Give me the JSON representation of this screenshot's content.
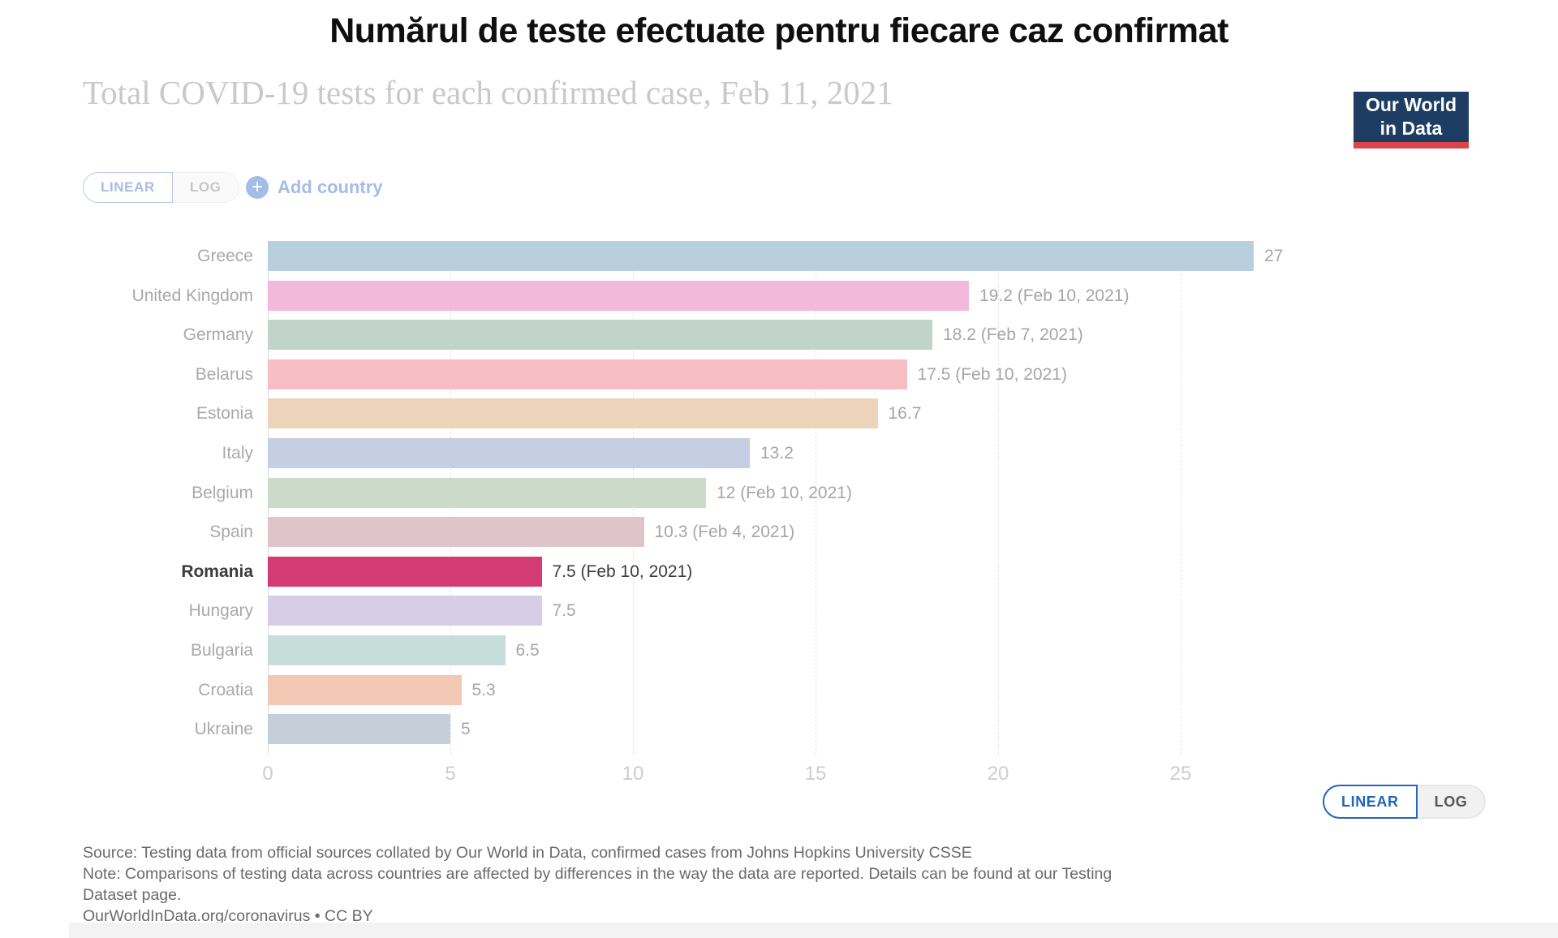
{
  "title": "Numărul de teste efectuate pentru fiecare caz confirmat",
  "subtitle": "Total COVID-19 tests for each confirmed case, Feb 11, 2021",
  "logo": {
    "line1": "Our World",
    "line2": "in Data",
    "bg_color": "#1d3d63",
    "accent_color": "#dc4449"
  },
  "controls": {
    "linear_label": "LINEAR",
    "log_label": "LOG",
    "add_country_label": "Add country",
    "plus_icon": "+",
    "accent_blue": "#1d66bb",
    "faded_blue": "#a4bce8"
  },
  "chart_data": {
    "type": "bar",
    "orientation": "horizontal",
    "title": "Total COVID-19 tests for each confirmed case, Feb 11, 2021",
    "xlabel": "",
    "ylabel": "",
    "xlim": [
      0,
      28
    ],
    "x_ticks": [
      0,
      5,
      10,
      15,
      20,
      25
    ],
    "grid": "vertical-dashed",
    "legend": "none",
    "highlighted_category": "Romania",
    "categories": [
      "Greece",
      "United Kingdom",
      "Germany",
      "Belarus",
      "Estonia",
      "Italy",
      "Belgium",
      "Spain",
      "Romania",
      "Hungary",
      "Bulgaria",
      "Croatia",
      "Ukraine"
    ],
    "values": [
      27,
      19.2,
      18.2,
      17.5,
      16.7,
      13.2,
      12,
      10.3,
      7.5,
      7.5,
      6.5,
      5.3,
      5
    ],
    "rows": [
      {
        "label": "Greece",
        "value": 27,
        "value_label": "27",
        "color": "#bacfdd",
        "highlight": false
      },
      {
        "label": "United Kingdom",
        "value": 19.2,
        "value_label": "19.2 (Feb 10, 2021)",
        "color": "#f3b9da",
        "highlight": false
      },
      {
        "label": "Germany",
        "value": 18.2,
        "value_label": "18.2 (Feb 7, 2021)",
        "color": "#c1d4ca",
        "highlight": false
      },
      {
        "label": "Belarus",
        "value": 17.5,
        "value_label": "17.5 (Feb 10, 2021)",
        "color": "#f6bec4",
        "highlight": false
      },
      {
        "label": "Estonia",
        "value": 16.7,
        "value_label": "16.7",
        "color": "#edd3b9",
        "highlight": false
      },
      {
        "label": "Italy",
        "value": 13.2,
        "value_label": "13.2",
        "color": "#c5cee3",
        "highlight": false
      },
      {
        "label": "Belgium",
        "value": 12,
        "value_label": "12 (Feb 10, 2021)",
        "color": "#cadcc9",
        "highlight": false
      },
      {
        "label": "Spain",
        "value": 10.3,
        "value_label": "10.3 (Feb 4, 2021)",
        "color": "#dfc4c9",
        "highlight": false
      },
      {
        "label": "Romania",
        "value": 7.5,
        "value_label": "7.5 (Feb 10, 2021)",
        "color": "#d43a74",
        "highlight": true
      },
      {
        "label": "Hungary",
        "value": 7.5,
        "value_label": "7.5",
        "color": "#d7cde6",
        "highlight": false
      },
      {
        "label": "Bulgaria",
        "value": 6.5,
        "value_label": "6.5",
        "color": "#c7ddd9",
        "highlight": false
      },
      {
        "label": "Croatia",
        "value": 5.3,
        "value_label": "5.3",
        "color": "#f2c8b5",
        "highlight": false
      },
      {
        "label": "Ukraine",
        "value": 5,
        "value_label": "5",
        "color": "#c5ced9",
        "highlight": false
      }
    ]
  },
  "footer": {
    "source": "Source: Testing data from official sources collated by Our World in Data, confirmed cases from Johns Hopkins University CSSE",
    "note": "Note: Comparisons of testing data across countries are affected by differences in the way the data are reported. Details can be found at our Testing Dataset page.",
    "attribution": "OurWorldInData.org/coronavirus • CC BY"
  }
}
